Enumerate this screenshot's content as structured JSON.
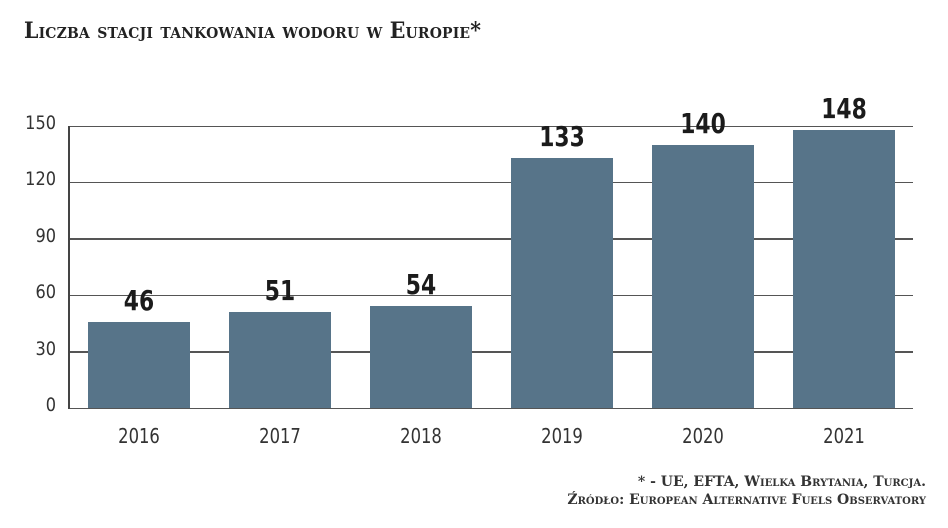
{
  "title": "Liczba stacji tankowania wodoru w Europie*",
  "footnote": "* - UE, EFTA, Wielka Brytania, Turcja.",
  "source": "Źródło: European Alternative Fuels Observatory",
  "colors": {
    "bar": "#577489",
    "grid": "#555555",
    "text": "#333333"
  },
  "chart_data": {
    "type": "bar",
    "title": "Liczba stacji tankowania wodoru w Europie*",
    "xlabel": "",
    "ylabel": "",
    "categories": [
      "2016",
      "2017",
      "2018",
      "2019",
      "2020",
      "2021"
    ],
    "values": [
      46,
      51,
      54,
      133,
      140,
      148
    ],
    "ylim": [
      0,
      150
    ],
    "yticks": [
      0,
      30,
      60,
      90,
      120,
      150
    ],
    "grid": true,
    "legend": null,
    "data_labels": true
  }
}
